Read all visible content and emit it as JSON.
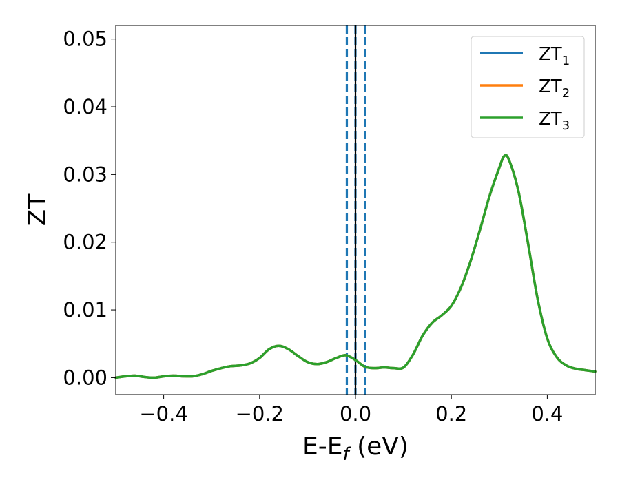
{
  "chart_data": {
    "type": "line",
    "title": "",
    "xlabel": "E-E",
    "xlabel_sub": "f",
    "xlabel_unit": " (eV)",
    "ylabel": "ZT",
    "xlim": [
      -0.5,
      0.5
    ],
    "ylim": [
      -0.0025,
      0.052
    ],
    "xticks": [
      -0.4,
      -0.2,
      0.0,
      0.2,
      0.4
    ],
    "xtick_labels": [
      "−0.4",
      "−0.2",
      "0.0",
      "0.2",
      "0.4"
    ],
    "yticks": [
      0.0,
      0.01,
      0.02,
      0.03,
      0.04,
      0.05
    ],
    "ytick_labels": [
      "0.00",
      "0.01",
      "0.02",
      "0.03",
      "0.04",
      "0.05"
    ],
    "grid": false,
    "legend_position": "top-right",
    "vlines": [
      {
        "x": -0.018,
        "style": "dashed",
        "color": "#1f77b4"
      },
      {
        "x": 0.0,
        "style": "dashed",
        "color": "#1f77b4"
      },
      {
        "x": 0.02,
        "style": "dashed",
        "color": "#1f77b4"
      },
      {
        "x": 0.0,
        "style": "solid",
        "color": "#000000"
      }
    ],
    "x": [
      -0.5,
      -0.48,
      -0.46,
      -0.44,
      -0.42,
      -0.4,
      -0.38,
      -0.36,
      -0.34,
      -0.32,
      -0.3,
      -0.28,
      -0.26,
      -0.24,
      -0.22,
      -0.2,
      -0.18,
      -0.16,
      -0.14,
      -0.12,
      -0.1,
      -0.08,
      -0.06,
      -0.04,
      -0.02,
      0.0,
      0.02,
      0.04,
      0.06,
      0.08,
      0.1,
      0.12,
      0.14,
      0.16,
      0.18,
      0.2,
      0.22,
      0.24,
      0.26,
      0.28,
      0.3,
      0.31,
      0.32,
      0.34,
      0.36,
      0.38,
      0.4,
      0.42,
      0.44,
      0.46,
      0.48,
      0.5
    ],
    "series": [
      {
        "name": "ZT",
        "name_sub": "1",
        "color": "#1f77b4",
        "values": [
          0.0,
          0.0002,
          0.0003,
          0.0001,
          0.0,
          0.0002,
          0.0003,
          0.0002,
          0.0002,
          0.0005,
          0.001,
          0.0014,
          0.0017,
          0.0018,
          0.0021,
          0.0029,
          0.0042,
          0.0047,
          0.0042,
          0.0032,
          0.0023,
          0.002,
          0.0023,
          0.0029,
          0.0033,
          0.0026,
          0.0016,
          0.0014,
          0.0015,
          0.0014,
          0.0015,
          0.0034,
          0.0062,
          0.0081,
          0.0092,
          0.0106,
          0.0133,
          0.0172,
          0.0219,
          0.0269,
          0.031,
          0.0327,
          0.0322,
          0.0275,
          0.0198,
          0.0116,
          0.0058,
          0.003,
          0.0018,
          0.0013,
          0.0011,
          0.0009
        ]
      },
      {
        "name": "ZT",
        "name_sub": "2",
        "color": "#ff7f0e",
        "values": [
          0.0,
          0.0002,
          0.0003,
          0.0001,
          0.0,
          0.0002,
          0.0003,
          0.0002,
          0.0002,
          0.0005,
          0.001,
          0.0014,
          0.0017,
          0.0018,
          0.0021,
          0.0029,
          0.0042,
          0.0047,
          0.0042,
          0.0032,
          0.0023,
          0.002,
          0.0023,
          0.0029,
          0.0033,
          0.0026,
          0.0016,
          0.0014,
          0.0015,
          0.0014,
          0.0015,
          0.0034,
          0.0062,
          0.0081,
          0.0092,
          0.0106,
          0.0133,
          0.0172,
          0.0219,
          0.0269,
          0.031,
          0.0327,
          0.0322,
          0.0275,
          0.0198,
          0.0116,
          0.0058,
          0.003,
          0.0018,
          0.0013,
          0.0011,
          0.0009
        ]
      },
      {
        "name": "ZT",
        "name_sub": "3",
        "color": "#2ca02c",
        "values": [
          0.0,
          0.0002,
          0.0003,
          0.0001,
          0.0,
          0.0002,
          0.0003,
          0.0002,
          0.0002,
          0.0005,
          0.001,
          0.0014,
          0.0017,
          0.0018,
          0.0021,
          0.0029,
          0.0042,
          0.0047,
          0.0042,
          0.0032,
          0.0023,
          0.002,
          0.0023,
          0.0029,
          0.0033,
          0.0026,
          0.0016,
          0.0014,
          0.0015,
          0.0014,
          0.0015,
          0.0034,
          0.0062,
          0.0081,
          0.0092,
          0.0106,
          0.0133,
          0.0172,
          0.0219,
          0.0269,
          0.031,
          0.0327,
          0.0322,
          0.0275,
          0.0198,
          0.0116,
          0.0058,
          0.003,
          0.0018,
          0.0013,
          0.0011,
          0.0009
        ]
      }
    ]
  }
}
